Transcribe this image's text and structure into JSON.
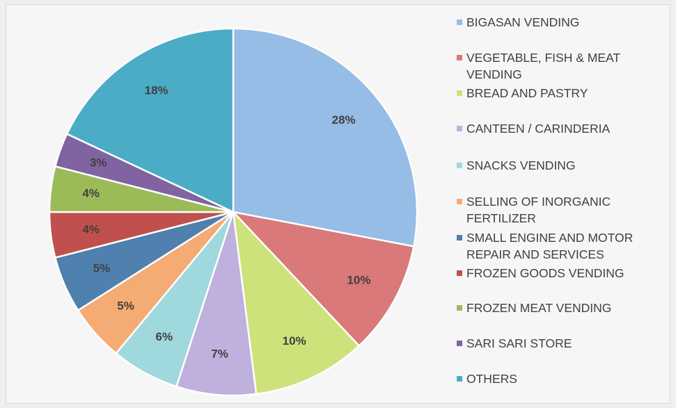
{
  "chart_data": {
    "type": "pie",
    "categories": [
      "BIGASAN VENDING",
      "VEGETABLE, FISH & MEAT VENDING",
      "BREAD AND PASTRY",
      "CANTEEN / CARINDERIA",
      "SNACKS VENDING",
      "SELLING OF INORGANIC FERTILIZER",
      "SMALL ENGINE AND MOTOR REPAIR AND SERVICES",
      "FROZEN GOODS VENDING",
      "FROZEN MEAT VENDING",
      "SARI SARI STORE",
      "OTHERS"
    ],
    "values": [
      28,
      10,
      10,
      7,
      6,
      5,
      5,
      4,
      4,
      3,
      18
    ],
    "value_labels": [
      "28%",
      "10%",
      "10%",
      "7%",
      "6%",
      "5%",
      "5%",
      "4%",
      "4%",
      "3%",
      "18%"
    ],
    "colors": [
      "#95bde6",
      "#d9797a",
      "#cde27a",
      "#c0b0de",
      "#9fd8dd",
      "#f5ab74",
      "#4f80ae",
      "#c0504d",
      "#9bbb59",
      "#8064a2",
      "#4bacc6"
    ],
    "legend": "right"
  }
}
